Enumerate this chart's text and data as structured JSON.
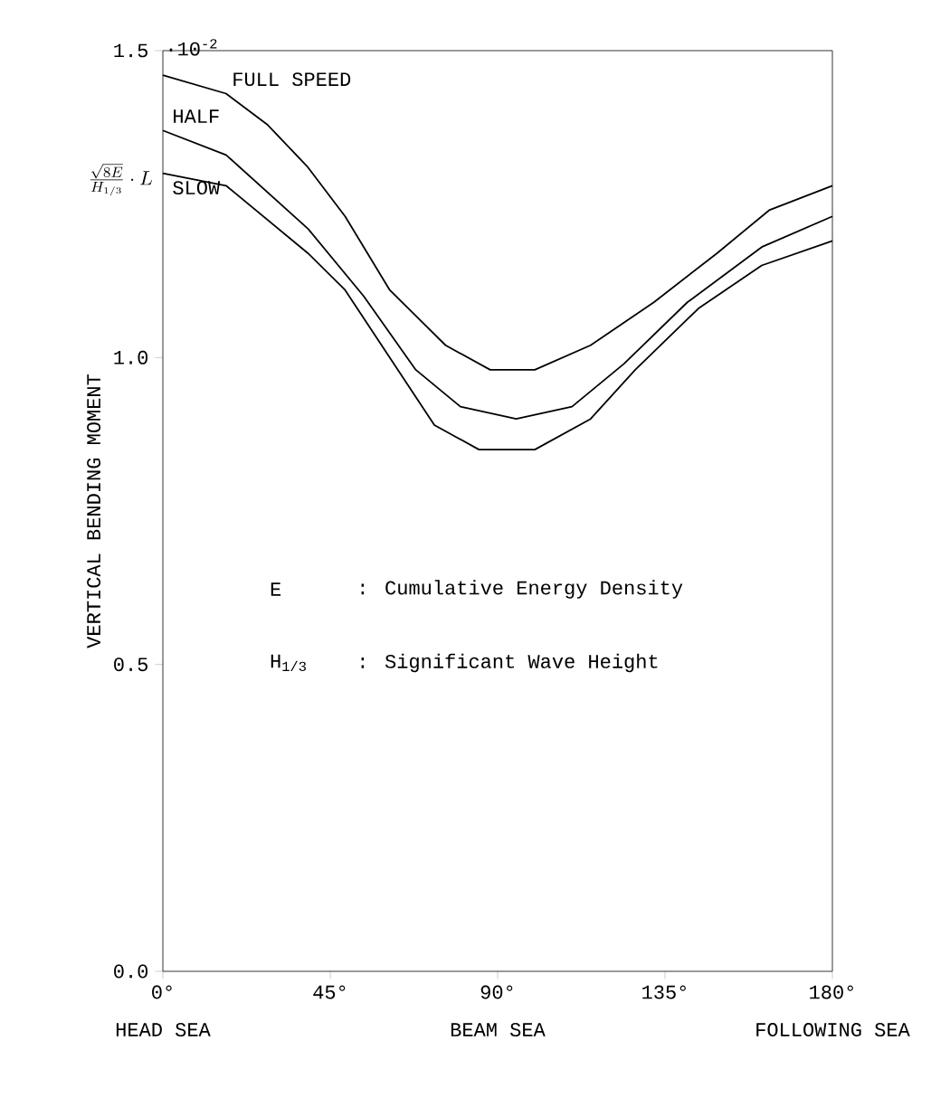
{
  "chart_data": {
    "type": "line",
    "ylabel": "VERTICAL BENDING MOMENT",
    "xlim": [
      0,
      180
    ],
    "xticks": [
      {
        "value": 0,
        "label": "0°"
      },
      {
        "value": 45,
        "label": "45°"
      },
      {
        "value": 90,
        "label": "90°"
      },
      {
        "value": 135,
        "label": "135°"
      },
      {
        "value": 180,
        "label": "180°"
      }
    ],
    "ylim": [
      0,
      1.5
    ],
    "yticks": [
      {
        "value": 0,
        "label": "0.0"
      },
      {
        "value": 0.5,
        "label": "0.5"
      },
      {
        "value": 1.0,
        "label": "1.0"
      },
      {
        "value": 1.5,
        "label": "1.5"
      }
    ],
    "series": [
      {
        "name": "FULL SPEED",
        "color": "#000000",
        "x": [
          0,
          17,
          28,
          39,
          49,
          61,
          76,
          88,
          100,
          115,
          132,
          149,
          163,
          180
        ],
        "values": [
          1.46,
          1.43,
          1.38,
          1.31,
          1.23,
          1.11,
          1.02,
          0.98,
          0.98,
          1.02,
          1.09,
          1.17,
          1.24,
          1.28
        ]
      },
      {
        "name": "HALF",
        "color": "#000000",
        "x": [
          0,
          17,
          39,
          54,
          68,
          80,
          95,
          110,
          124,
          141,
          161,
          180
        ],
        "values": [
          1.37,
          1.33,
          1.21,
          1.1,
          0.98,
          0.92,
          0.9,
          0.92,
          0.99,
          1.09,
          1.18,
          1.23
        ]
      },
      {
        "name": "SLOW",
        "color": "#000000",
        "x": [
          0,
          17,
          39,
          49,
          61,
          73,
          85,
          100,
          115,
          127,
          144,
          161,
          180
        ],
        "values": [
          1.3,
          1.28,
          1.17,
          1.11,
          1.0,
          0.89,
          0.85,
          0.85,
          0.9,
          0.98,
          1.08,
          1.15,
          1.19
        ]
      }
    ],
    "annotations": [
      "HEAD SEA",
      "BEAM SEA",
      "FOLLOWING SEA",
      "E",
      ": Cumulative Energy Density",
      "H$_{1/3}$",
      ": Significant Wave Height",
      "·10$^{-2}$",
      "\\frac{\\sqrt{8E}}{H_{1/3}}\\cdot L"
    ],
    "grid": false,
    "marker": "none",
    "line_style": "solid"
  }
}
